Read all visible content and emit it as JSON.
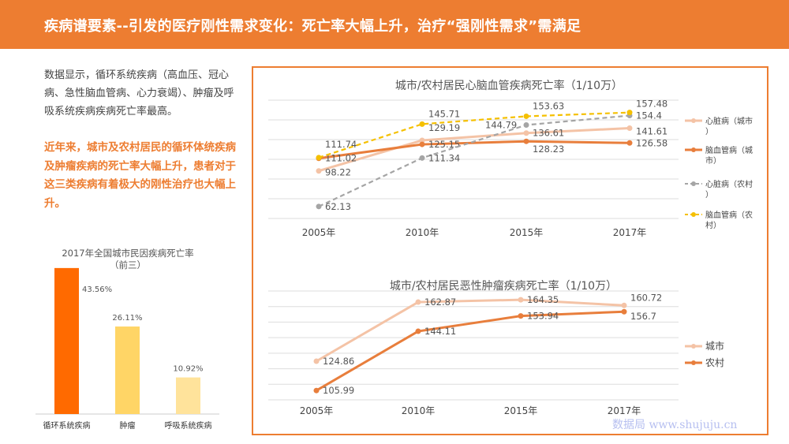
{
  "header": {
    "title": "疾病谱要素--引发的医疗刚性需求变化：死亡率大幅上升，治疗“强刚性需求”需满足"
  },
  "text": {
    "paragraph1": "数据显示，循环系统疾病（高血压、冠心病、急性脑血管病、心力衰竭）、肿瘤及呼吸系统疾病疾病死亡率最高。",
    "paragraph2": "近年来，城市及农村居民的循环体统疾病及肿瘤疾病的死亡率大幅上升，患者对于这三类疾病有着极大的刚性治疗也大幅上升。"
  },
  "watermark": "数据局 www.shujuju.cn",
  "colors": {
    "accent": "#ED7D31",
    "bar1": "#FF6A00",
    "bar2": "#FFD566",
    "bar3": "#FFE39B"
  },
  "chart_data": [
    {
      "type": "bar",
      "title": "2017年全国城市民因疾病死亡率",
      "subtitle": "（前三）",
      "categories": [
        "循环系统疾病",
        "肿瘤",
        "呼吸系统疾病"
      ],
      "values": [
        43.56,
        26.11,
        10.92
      ],
      "labels": [
        "43.56%",
        "26.11%",
        "10.92%"
      ],
      "unit": "%"
    },
    {
      "type": "line",
      "title": "城市/农村居民心脑血管疾病死亡率（1/10万）",
      "categories": [
        "2005年",
        "2010年",
        "2015年",
        "2017年"
      ],
      "ylim": [
        50,
        170
      ],
      "grid": true,
      "legend": "right",
      "series": [
        {
          "name": "心脏病（城市）",
          "values": [
            98.22,
            129.19,
            136.61,
            141.61
          ],
          "color": "#F4C3A6",
          "dash": false
        },
        {
          "name": "脑血管病（城市）",
          "values": [
            111.02,
            125.15,
            128.23,
            126.58
          ],
          "color": "#E87E3C",
          "dash": false
        },
        {
          "name": "心脏病（农村）",
          "values": [
            62.13,
            111.34,
            144.79,
            154.4
          ],
          "color": "#A5A5A5",
          "dash": true
        },
        {
          "name": "脑血管病（农村）",
          "values": [
            111.74,
            145.71,
            153.63,
            157.48
          ],
          "color": "#F5C000",
          "dash": true
        }
      ]
    },
    {
      "type": "line",
      "title": "城市/农村居民恶性肿瘤疾病死亡率（1/10万）",
      "categories": [
        "2005年",
        "2010年",
        "2015年",
        "2017年"
      ],
      "ylim": [
        100,
        170
      ],
      "grid": true,
      "legend": "right",
      "series": [
        {
          "name": "城市",
          "values": [
            124.86,
            162.87,
            164.35,
            160.72
          ],
          "color": "#F4C3A6",
          "dash": false
        },
        {
          "name": "农村",
          "values": [
            105.99,
            144.11,
            153.94,
            156.7
          ],
          "color": "#E87E3C",
          "dash": false
        }
      ]
    }
  ]
}
